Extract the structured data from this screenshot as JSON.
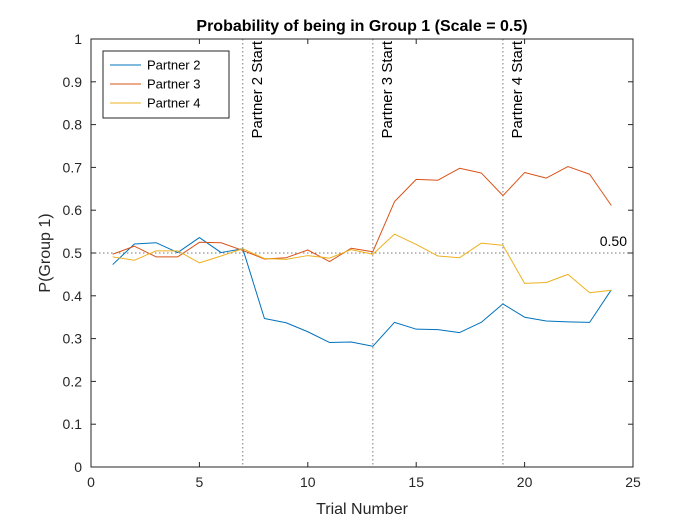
{
  "chart_data": {
    "type": "line",
    "title": "Probability of being in Group 1 (Scale = 0.5)",
    "xlabel": "Trial Number",
    "ylabel": "P(Group 1)",
    "xlim": [
      0,
      25
    ],
    "ylim": [
      0,
      1
    ],
    "xticks": [
      "0",
      "5",
      "10",
      "15",
      "20",
      "25"
    ],
    "yticks": [
      "0",
      "0.1",
      "0.2",
      "0.3",
      "0.4",
      "0.5",
      "0.6",
      "0.7",
      "0.8",
      "0.9",
      "1"
    ],
    "grid": false,
    "legend_position": "top-left",
    "x": [
      1,
      2,
      3,
      4,
      5,
      6,
      7,
      8,
      9,
      10,
      11,
      12,
      13,
      14,
      15,
      16,
      17,
      18,
      19,
      20,
      21,
      22,
      23,
      24
    ],
    "series": [
      {
        "name": "Partner 2",
        "color": "#0072BD",
        "values": [
          0.473,
          0.521,
          0.524,
          0.501,
          0.536,
          0.501,
          0.51,
          0.347,
          0.337,
          0.316,
          0.291,
          0.292,
          0.282,
          0.338,
          0.322,
          0.321,
          0.314,
          0.338,
          0.381,
          0.35,
          0.341,
          0.339,
          0.338,
          0.414
        ]
      },
      {
        "name": "Partner 3",
        "color": "#D95319",
        "values": [
          0.497,
          0.516,
          0.491,
          0.491,
          0.525,
          0.524,
          0.506,
          0.486,
          0.489,
          0.507,
          0.48,
          0.511,
          0.503,
          0.62,
          0.672,
          0.67,
          0.698,
          0.687,
          0.634,
          0.688,
          0.675,
          0.702,
          0.684,
          0.611
        ]
      },
      {
        "name": "Partner 4",
        "color": "#EDB120",
        "values": [
          0.491,
          0.483,
          0.505,
          0.505,
          0.477,
          0.493,
          0.51,
          0.487,
          0.485,
          0.494,
          0.488,
          0.508,
          0.497,
          0.544,
          0.52,
          0.493,
          0.489,
          0.523,
          0.518,
          0.429,
          0.431,
          0.45,
          0.407,
          0.413
        ]
      }
    ],
    "reference_lines": [
      {
        "axis": "x",
        "value": 7,
        "label": "Partner 2 Start"
      },
      {
        "axis": "x",
        "value": 13,
        "label": "Partner 3 Start"
      },
      {
        "axis": "x",
        "value": 19,
        "label": "Partner 4 Start"
      },
      {
        "axis": "y",
        "value": 0.5,
        "label": "0.50"
      }
    ]
  }
}
